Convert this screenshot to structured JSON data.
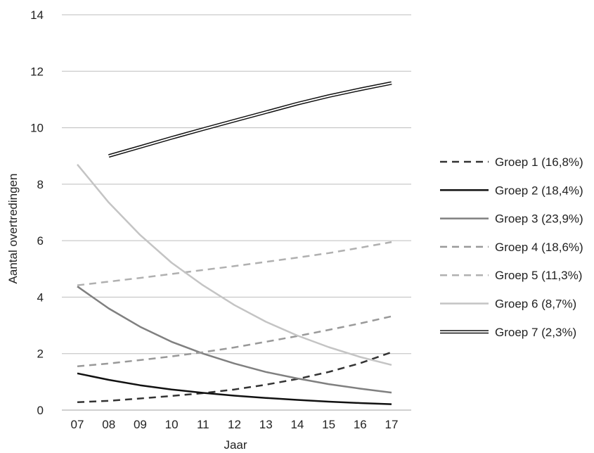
{
  "chart_data": {
    "type": "line",
    "xlabel": "Jaar",
    "ylabel": "Aantal overtredingen",
    "x": [
      "07",
      "08",
      "09",
      "10",
      "11",
      "12",
      "13",
      "14",
      "15",
      "16",
      "17"
    ],
    "ylim": [
      0,
      14
    ],
    "yticks": [
      "0",
      "2",
      "4",
      "6",
      "8",
      "10",
      "12",
      "14"
    ],
    "grid": "horizontal",
    "legend_position": "right",
    "series": [
      {
        "name": "Groep 1 (16,8%)",
        "style": "dashed",
        "color": "#333333",
        "values": [
          0.28,
          0.33,
          0.41,
          0.5,
          0.6,
          0.73,
          0.9,
          1.1,
          1.35,
          1.66,
          2.05
        ]
      },
      {
        "name": "Groep 2 (18,4%)",
        "style": "solid",
        "color": "#111111",
        "values": [
          1.3,
          1.07,
          0.88,
          0.73,
          0.61,
          0.51,
          0.43,
          0.36,
          0.3,
          0.25,
          0.21
        ]
      },
      {
        "name": "Groep 3 (23,9%)",
        "style": "solid",
        "color": "#808080",
        "values": [
          4.38,
          3.6,
          2.95,
          2.42,
          2.0,
          1.65,
          1.35,
          1.12,
          0.92,
          0.76,
          0.62
        ]
      },
      {
        "name": "Groep 4 (18,6%)",
        "style": "dashed",
        "color": "#999999",
        "values": [
          1.55,
          1.65,
          1.77,
          1.9,
          2.05,
          2.22,
          2.42,
          2.62,
          2.84,
          3.07,
          3.32
        ]
      },
      {
        "name": "Groep 5 (11,3%)",
        "style": "dashed",
        "color": "#b0b0b0",
        "values": [
          4.42,
          4.55,
          4.68,
          4.82,
          4.96,
          5.1,
          5.25,
          5.4,
          5.56,
          5.75,
          5.95
        ]
      },
      {
        "name": "Groep 6 (8,7%)",
        "style": "solid",
        "color": "#c4c4c4",
        "values": [
          8.7,
          7.35,
          6.2,
          5.22,
          4.42,
          3.72,
          3.13,
          2.64,
          2.23,
          1.88,
          1.6
        ]
      },
      {
        "name": "Groep 7 (2,3%)",
        "style": "double",
        "color": "#111111",
        "values": [
          null,
          9.0,
          9.32,
          9.64,
          9.95,
          10.25,
          10.55,
          10.85,
          11.12,
          11.36,
          11.58
        ]
      }
    ]
  }
}
